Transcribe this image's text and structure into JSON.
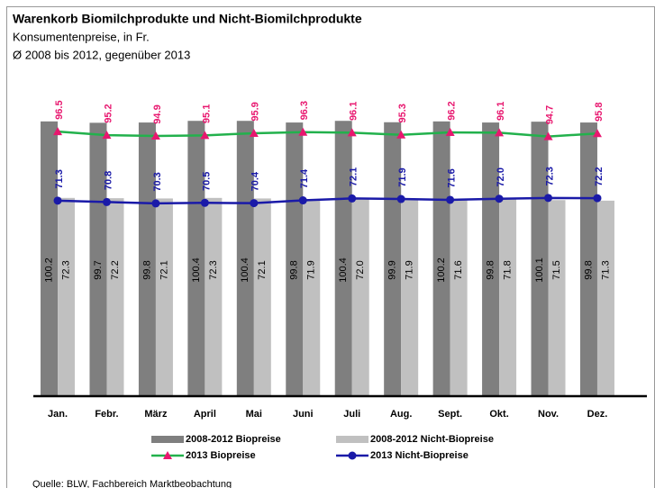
{
  "chart_data": {
    "type": "bar",
    "title": "Warenkorb Biomilchprodukte und Nicht-Biomilchprodukte",
    "subtitle": "Konsumentenpreise, in Fr.",
    "subtitle2": "Ø 2008 bis 2012, gegenüber 2013",
    "source": "Quelle: BLW, Fachbereich Marktbeobachtung",
    "categories": [
      "Jan.",
      "Febr.",
      "März",
      "April",
      "Mai",
      "Juni",
      "Juli",
      "Aug.",
      "Sept.",
      "Okt.",
      "Nov.",
      "Dez."
    ],
    "ylim": [
      0,
      110
    ],
    "series": [
      {
        "name": "2008-2012 Biopreise",
        "type": "bar",
        "color": "#7f7f7f",
        "values": [
          100.2,
          99.7,
          99.8,
          100.4,
          100.4,
          99.8,
          100.4,
          99.9,
          100.2,
          99.8,
          100.1,
          99.8
        ],
        "value_labels": [
          "100.2",
          "99.7",
          "99.8",
          "100.4",
          "100.4",
          "99.8",
          "100.4",
          "99.9",
          "100.2",
          "99.8",
          "100.1",
          "99.8"
        ]
      },
      {
        "name": "2008-2012 Nicht-Biopreise",
        "type": "bar",
        "color": "#c0c0c0",
        "values": [
          72.3,
          72.2,
          72.1,
          72.3,
          72.1,
          71.9,
          72.0,
          71.9,
          71.6,
          71.8,
          71.5,
          71.3
        ],
        "value_labels": [
          "72.3",
          "72.2",
          "72.1",
          "72.3",
          "72.1",
          "71.9",
          "72.0",
          "71.9",
          "71.6",
          "71.8",
          "71.5",
          "71.3"
        ]
      },
      {
        "name": "2013 Biopreise",
        "type": "line",
        "color": "#22b14c",
        "marker": "triangle",
        "marker_color": "#e8176f",
        "values": [
          96.5,
          95.2,
          94.9,
          95.1,
          95.9,
          96.3,
          96.1,
          95.3,
          96.2,
          96.1,
          94.7,
          95.8
        ],
        "value_labels": [
          "96.5",
          "95.2",
          "94.9",
          "95.1",
          "95.9",
          "96.3",
          "96.1",
          "95.3",
          "96.2",
          "96.1",
          "94.7",
          "95.8"
        ]
      },
      {
        "name": "2013 Nicht-Biopreise",
        "type": "line",
        "color": "#1a1aa8",
        "marker": "circle",
        "marker_color": "#1a1aa8",
        "values": [
          71.3,
          70.8,
          70.3,
          70.5,
          70.4,
          71.4,
          72.1,
          71.9,
          71.6,
          72.0,
          72.3,
          72.2
        ],
        "value_labels": [
          "71.3",
          "70.8",
          "70.3",
          "70.5",
          "70.4",
          "71.4",
          "72.1",
          "71.9",
          "71.6",
          "72.0",
          "72.3",
          "72.2"
        ]
      }
    ]
  }
}
